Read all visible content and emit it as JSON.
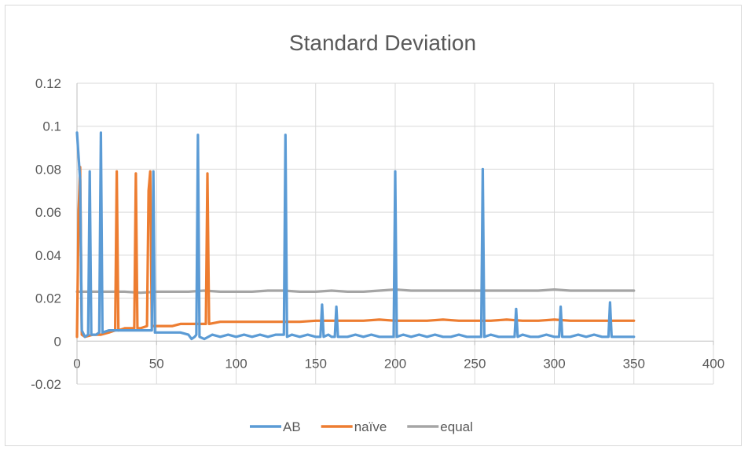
{
  "chart_data": {
    "type": "line",
    "title": "Standard Deviation",
    "xlabel": "",
    "ylabel": "",
    "xlim": [
      0,
      400
    ],
    "ylim": [
      -0.02,
      0.12
    ],
    "x_ticks": [
      0,
      50,
      100,
      150,
      200,
      250,
      300,
      350,
      400
    ],
    "y_ticks": [
      -0.02,
      0,
      0.02,
      0.04,
      0.06,
      0.08,
      0.1,
      0.12
    ],
    "x_tick_labels": [
      "0",
      "50",
      "100",
      "150",
      "200",
      "250",
      "300",
      "350",
      "400"
    ],
    "y_tick_labels": [
      "-0.02",
      "0",
      "0.02",
      "0.04",
      "0.06",
      "0.08",
      "0.1",
      "0.12"
    ],
    "grid": true,
    "legend_position": "bottom",
    "series": [
      {
        "name": "AB",
        "color": "#5b9bd5",
        "points": [
          [
            0,
            0.097
          ],
          [
            2,
            0.075
          ],
          [
            3,
            0.005
          ],
          [
            5,
            0.002
          ],
          [
            7,
            0.003
          ],
          [
            8,
            0.079
          ],
          [
            9,
            0.003
          ],
          [
            12,
            0.003
          ],
          [
            14,
            0.004
          ],
          [
            15,
            0.097
          ],
          [
            16,
            0.004
          ],
          [
            20,
            0.005
          ],
          [
            25,
            0.005
          ],
          [
            30,
            0.005
          ],
          [
            35,
            0.005
          ],
          [
            40,
            0.005
          ],
          [
            45,
            0.005
          ],
          [
            47,
            0.005
          ],
          [
            48,
            0.079
          ],
          [
            49,
            0.004
          ],
          [
            55,
            0.004
          ],
          [
            60,
            0.004
          ],
          [
            65,
            0.004
          ],
          [
            70,
            0.003
          ],
          [
            72,
            0.001
          ],
          [
            74,
            0.002
          ],
          [
            75,
            0.003
          ],
          [
            76,
            0.096
          ],
          [
            77,
            0.002
          ],
          [
            80,
            0.001
          ],
          [
            85,
            0.003
          ],
          [
            90,
            0.002
          ],
          [
            95,
            0.003
          ],
          [
            100,
            0.002
          ],
          [
            105,
            0.003
          ],
          [
            110,
            0.002
          ],
          [
            115,
            0.003
          ],
          [
            120,
            0.002
          ],
          [
            125,
            0.003
          ],
          [
            130,
            0.003
          ],
          [
            131,
            0.096
          ],
          [
            132,
            0.002
          ],
          [
            135,
            0.003
          ],
          [
            140,
            0.002
          ],
          [
            145,
            0.003
          ],
          [
            150,
            0.002
          ],
          [
            153,
            0.002
          ],
          [
            154,
            0.017
          ],
          [
            155,
            0.002
          ],
          [
            158,
            0.003
          ],
          [
            160,
            0.002
          ],
          [
            162,
            0.002
          ],
          [
            163,
            0.016
          ],
          [
            164,
            0.002
          ],
          [
            170,
            0.002
          ],
          [
            175,
            0.003
          ],
          [
            180,
            0.002
          ],
          [
            185,
            0.003
          ],
          [
            190,
            0.002
          ],
          [
            195,
            0.002
          ],
          [
            199,
            0.002
          ],
          [
            200,
            0.079
          ],
          [
            201,
            0.002
          ],
          [
            205,
            0.003
          ],
          [
            210,
            0.002
          ],
          [
            215,
            0.003
          ],
          [
            220,
            0.002
          ],
          [
            225,
            0.003
          ],
          [
            230,
            0.002
          ],
          [
            235,
            0.002
          ],
          [
            240,
            0.003
          ],
          [
            245,
            0.002
          ],
          [
            250,
            0.002
          ],
          [
            254,
            0.002
          ],
          [
            255,
            0.08
          ],
          [
            256,
            0.002
          ],
          [
            260,
            0.003
          ],
          [
            265,
            0.002
          ],
          [
            270,
            0.002
          ],
          [
            275,
            0.002
          ],
          [
            276,
            0.015
          ],
          [
            277,
            0.002
          ],
          [
            280,
            0.003
          ],
          [
            285,
            0.002
          ],
          [
            290,
            0.002
          ],
          [
            295,
            0.003
          ],
          [
            300,
            0.002
          ],
          [
            303,
            0.002
          ],
          [
            304,
            0.016
          ],
          [
            305,
            0.002
          ],
          [
            310,
            0.002
          ],
          [
            315,
            0.003
          ],
          [
            320,
            0.002
          ],
          [
            325,
            0.003
          ],
          [
            330,
            0.002
          ],
          [
            334,
            0.002
          ],
          [
            335,
            0.018
          ],
          [
            336,
            0.002
          ],
          [
            340,
            0.002
          ],
          [
            345,
            0.002
          ],
          [
            350,
            0.002
          ]
        ]
      },
      {
        "name": "naïve",
        "color": "#ed7d31",
        "points": [
          [
            0,
            0.002
          ],
          [
            1,
            0.06
          ],
          [
            2,
            0.081
          ],
          [
            3,
            0.003
          ],
          [
            5,
            0.002
          ],
          [
            10,
            0.003
          ],
          [
            15,
            0.003
          ],
          [
            20,
            0.004
          ],
          [
            24,
            0.005
          ],
          [
            25,
            0.079
          ],
          [
            26,
            0.005
          ],
          [
            30,
            0.006
          ],
          [
            35,
            0.006
          ],
          [
            36,
            0.006
          ],
          [
            37,
            0.078
          ],
          [
            38,
            0.006
          ],
          [
            40,
            0.006
          ],
          [
            44,
            0.007
          ],
          [
            45,
            0.07
          ],
          [
            46,
            0.079
          ],
          [
            47,
            0.007
          ],
          [
            50,
            0.007
          ],
          [
            55,
            0.007
          ],
          [
            60,
            0.007
          ],
          [
            65,
            0.008
          ],
          [
            70,
            0.008
          ],
          [
            75,
            0.008
          ],
          [
            80,
            0.008
          ],
          [
            81,
            0.008
          ],
          [
            82,
            0.078
          ],
          [
            83,
            0.008
          ],
          [
            90,
            0.009
          ],
          [
            100,
            0.009
          ],
          [
            110,
            0.009
          ],
          [
            120,
            0.009
          ],
          [
            130,
            0.009
          ],
          [
            140,
            0.009
          ],
          [
            150,
            0.0095
          ],
          [
            160,
            0.0095
          ],
          [
            170,
            0.0095
          ],
          [
            180,
            0.0095
          ],
          [
            190,
            0.01
          ],
          [
            200,
            0.0095
          ],
          [
            210,
            0.0095
          ],
          [
            220,
            0.0095
          ],
          [
            230,
            0.01
          ],
          [
            240,
            0.0095
          ],
          [
            250,
            0.0095
          ],
          [
            260,
            0.0095
          ],
          [
            270,
            0.01
          ],
          [
            280,
            0.0095
          ],
          [
            290,
            0.0095
          ],
          [
            300,
            0.01
          ],
          [
            310,
            0.0095
          ],
          [
            320,
            0.0095
          ],
          [
            330,
            0.0095
          ],
          [
            340,
            0.0095
          ],
          [
            350,
            0.0095
          ]
        ]
      },
      {
        "name": "equal",
        "color": "#a5a5a5",
        "points": [
          [
            0,
            0.023
          ],
          [
            10,
            0.023
          ],
          [
            20,
            0.023
          ],
          [
            30,
            0.023
          ],
          [
            40,
            0.0225
          ],
          [
            50,
            0.023
          ],
          [
            60,
            0.023
          ],
          [
            70,
            0.023
          ],
          [
            80,
            0.0235
          ],
          [
            90,
            0.023
          ],
          [
            100,
            0.023
          ],
          [
            110,
            0.023
          ],
          [
            120,
            0.0235
          ],
          [
            130,
            0.0235
          ],
          [
            140,
            0.023
          ],
          [
            150,
            0.023
          ],
          [
            160,
            0.0235
          ],
          [
            170,
            0.023
          ],
          [
            180,
            0.023
          ],
          [
            190,
            0.0235
          ],
          [
            200,
            0.024
          ],
          [
            210,
            0.0235
          ],
          [
            220,
            0.0235
          ],
          [
            230,
            0.0235
          ],
          [
            240,
            0.0235
          ],
          [
            250,
            0.0235
          ],
          [
            260,
            0.0235
          ],
          [
            270,
            0.0235
          ],
          [
            280,
            0.0235
          ],
          [
            290,
            0.0235
          ],
          [
            300,
            0.024
          ],
          [
            310,
            0.0235
          ],
          [
            320,
            0.0235
          ],
          [
            330,
            0.0235
          ],
          [
            340,
            0.0235
          ],
          [
            350,
            0.0235
          ]
        ]
      }
    ]
  }
}
